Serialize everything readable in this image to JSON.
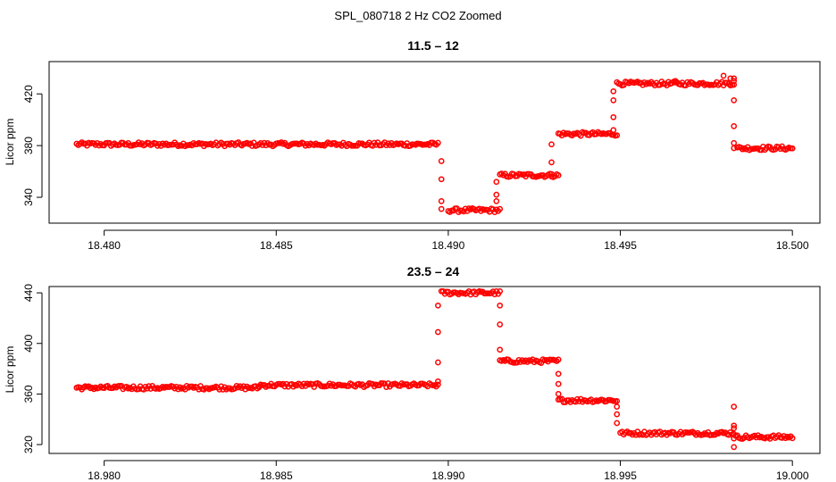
{
  "page_title": "SPL_080718  2 Hz CO2 Zoomed",
  "colors": {
    "points": "#ff0000",
    "axis": "#000000",
    "background": "#ffffff"
  },
  "chart_data": [
    {
      "type": "scatter",
      "title": "11.5 – 12",
      "ylabel": "Licor ppm",
      "xlabel": "",
      "grid": false,
      "marker": "open-circle",
      "xlim": [
        18.4784,
        18.5008
      ],
      "ylim": [
        320,
        445
      ],
      "xticks": [
        18.48,
        18.485,
        18.49,
        18.495,
        18.5
      ],
      "xtick_labels": [
        "18.480",
        "18.485",
        "18.490",
        "18.495",
        "18.500"
      ],
      "yticks": [
        340,
        380,
        420
      ],
      "ytick_labels": [
        "340",
        "380",
        "420"
      ],
      "segments": [
        {
          "x0": 18.4792,
          "x1": 18.4897,
          "y": 381
        },
        {
          "x0": 18.49,
          "x1": 18.4915,
          "y": 330
        },
        {
          "x0": 18.4915,
          "x1": 18.4932,
          "y": 357
        },
        {
          "x0": 18.4932,
          "x1": 18.4949,
          "y": 389
        },
        {
          "x0": 18.4949,
          "x1": 18.4983,
          "y": 428
        },
        {
          "x0": 18.4984,
          "x1": 18.5,
          "y": 378
        }
      ],
      "transitions": [
        {
          "x": 18.4898,
          "ys": [
            368,
            354,
            337,
            331
          ]
        },
        {
          "x": 18.4914,
          "ys": [
            337,
            342,
            352
          ]
        },
        {
          "x": 18.493,
          "ys": [
            358,
            367,
            381
          ]
        },
        {
          "x": 18.4948,
          "ys": [
            392,
            402,
            415,
            422
          ]
        },
        {
          "x": 18.4983,
          "ys": [
            432,
            430,
            415,
            395,
            382,
            378
          ]
        }
      ],
      "outliers": [
        {
          "x": 18.498,
          "y": 434
        },
        {
          "x": 18.4982,
          "y": 432
        },
        {
          "x": 18.4966,
          "y": 430
        }
      ]
    },
    {
      "type": "scatter",
      "title": "23.5 – 24",
      "ylabel": "Licor ppm",
      "xlabel": "",
      "grid": false,
      "marker": "open-circle",
      "xlim": [
        18.9784,
        19.0008
      ],
      "ylim": [
        313,
        445
      ],
      "xticks": [
        18.98,
        18.985,
        18.99,
        18.995,
        19.0
      ],
      "xtick_labels": [
        "18.980",
        "18.985",
        "18.990",
        "18.995",
        "19.000"
      ],
      "yticks": [
        320,
        360,
        400,
        440
      ],
      "ytick_labels": [
        "320",
        "360",
        "400",
        "440"
      ],
      "segments": [
        {
          "x0": 18.9792,
          "x1": 18.9845,
          "y": 365
        },
        {
          "x0": 18.9845,
          "x1": 18.9897,
          "y": 367
        },
        {
          "x0": 18.9898,
          "x1": 18.9915,
          "y": 440
        },
        {
          "x0": 18.9915,
          "x1": 18.9932,
          "y": 386
        },
        {
          "x0": 18.9932,
          "x1": 18.9949,
          "y": 355
        },
        {
          "x0": 18.995,
          "x1": 18.9983,
          "y": 329
        },
        {
          "x0": 18.9983,
          "x1": 19.0,
          "y": 326
        }
      ],
      "transitions": [
        {
          "x": 18.9897,
          "ys": [
            370,
            385,
            409,
            430
          ]
        },
        {
          "x": 18.9915,
          "ys": [
            430,
            415,
            395
          ]
        },
        {
          "x": 18.9932,
          "ys": [
            376,
            368,
            360
          ]
        },
        {
          "x": 18.9949,
          "ys": [
            350,
            344,
            337
          ]
        },
        {
          "x": 18.9983,
          "ys": [
            350,
            335,
            333,
            318
          ]
        }
      ],
      "outliers": []
    }
  ]
}
